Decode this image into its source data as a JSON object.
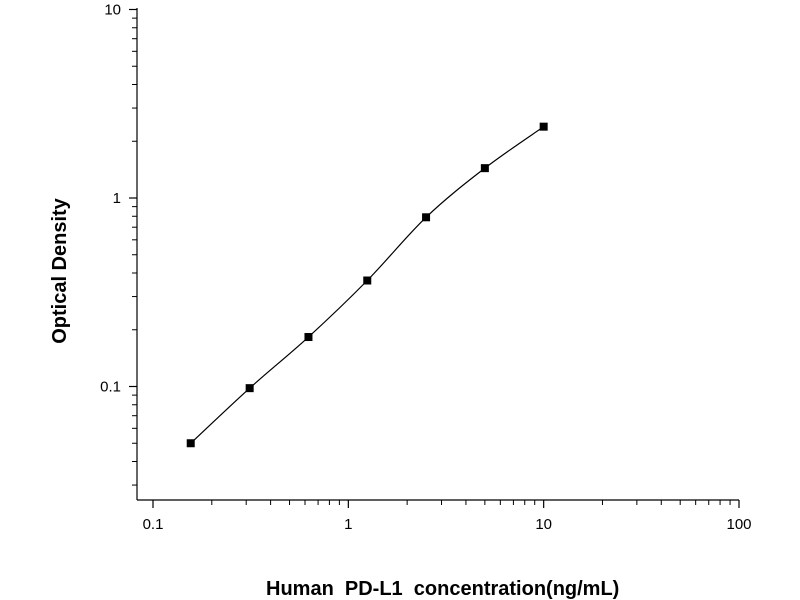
{
  "chart_data": {
    "type": "scatter",
    "title": "",
    "xlabel": "Human  PD-L1  concentration(ng/mL)",
    "ylabel": "Optical Density",
    "x_scale": "log",
    "y_scale": "log",
    "xlim": [
      0.1,
      100
    ],
    "ylim": [
      0.027,
      10
    ],
    "x_tick_labels": [
      "0.1",
      "1",
      "10",
      "100"
    ],
    "y_tick_labels": [
      "0.1",
      "1",
      "10"
    ],
    "grid": false,
    "legend": "none",
    "series": [
      {
        "x": [
          0.156,
          0.3125,
          0.625,
          1.25,
          2.5,
          5,
          10
        ],
        "y": [
          0.05,
          0.098,
          0.183,
          0.365,
          0.79,
          1.44,
          2.39
        ],
        "marker": "square",
        "fitted_curve": true
      }
    ]
  }
}
